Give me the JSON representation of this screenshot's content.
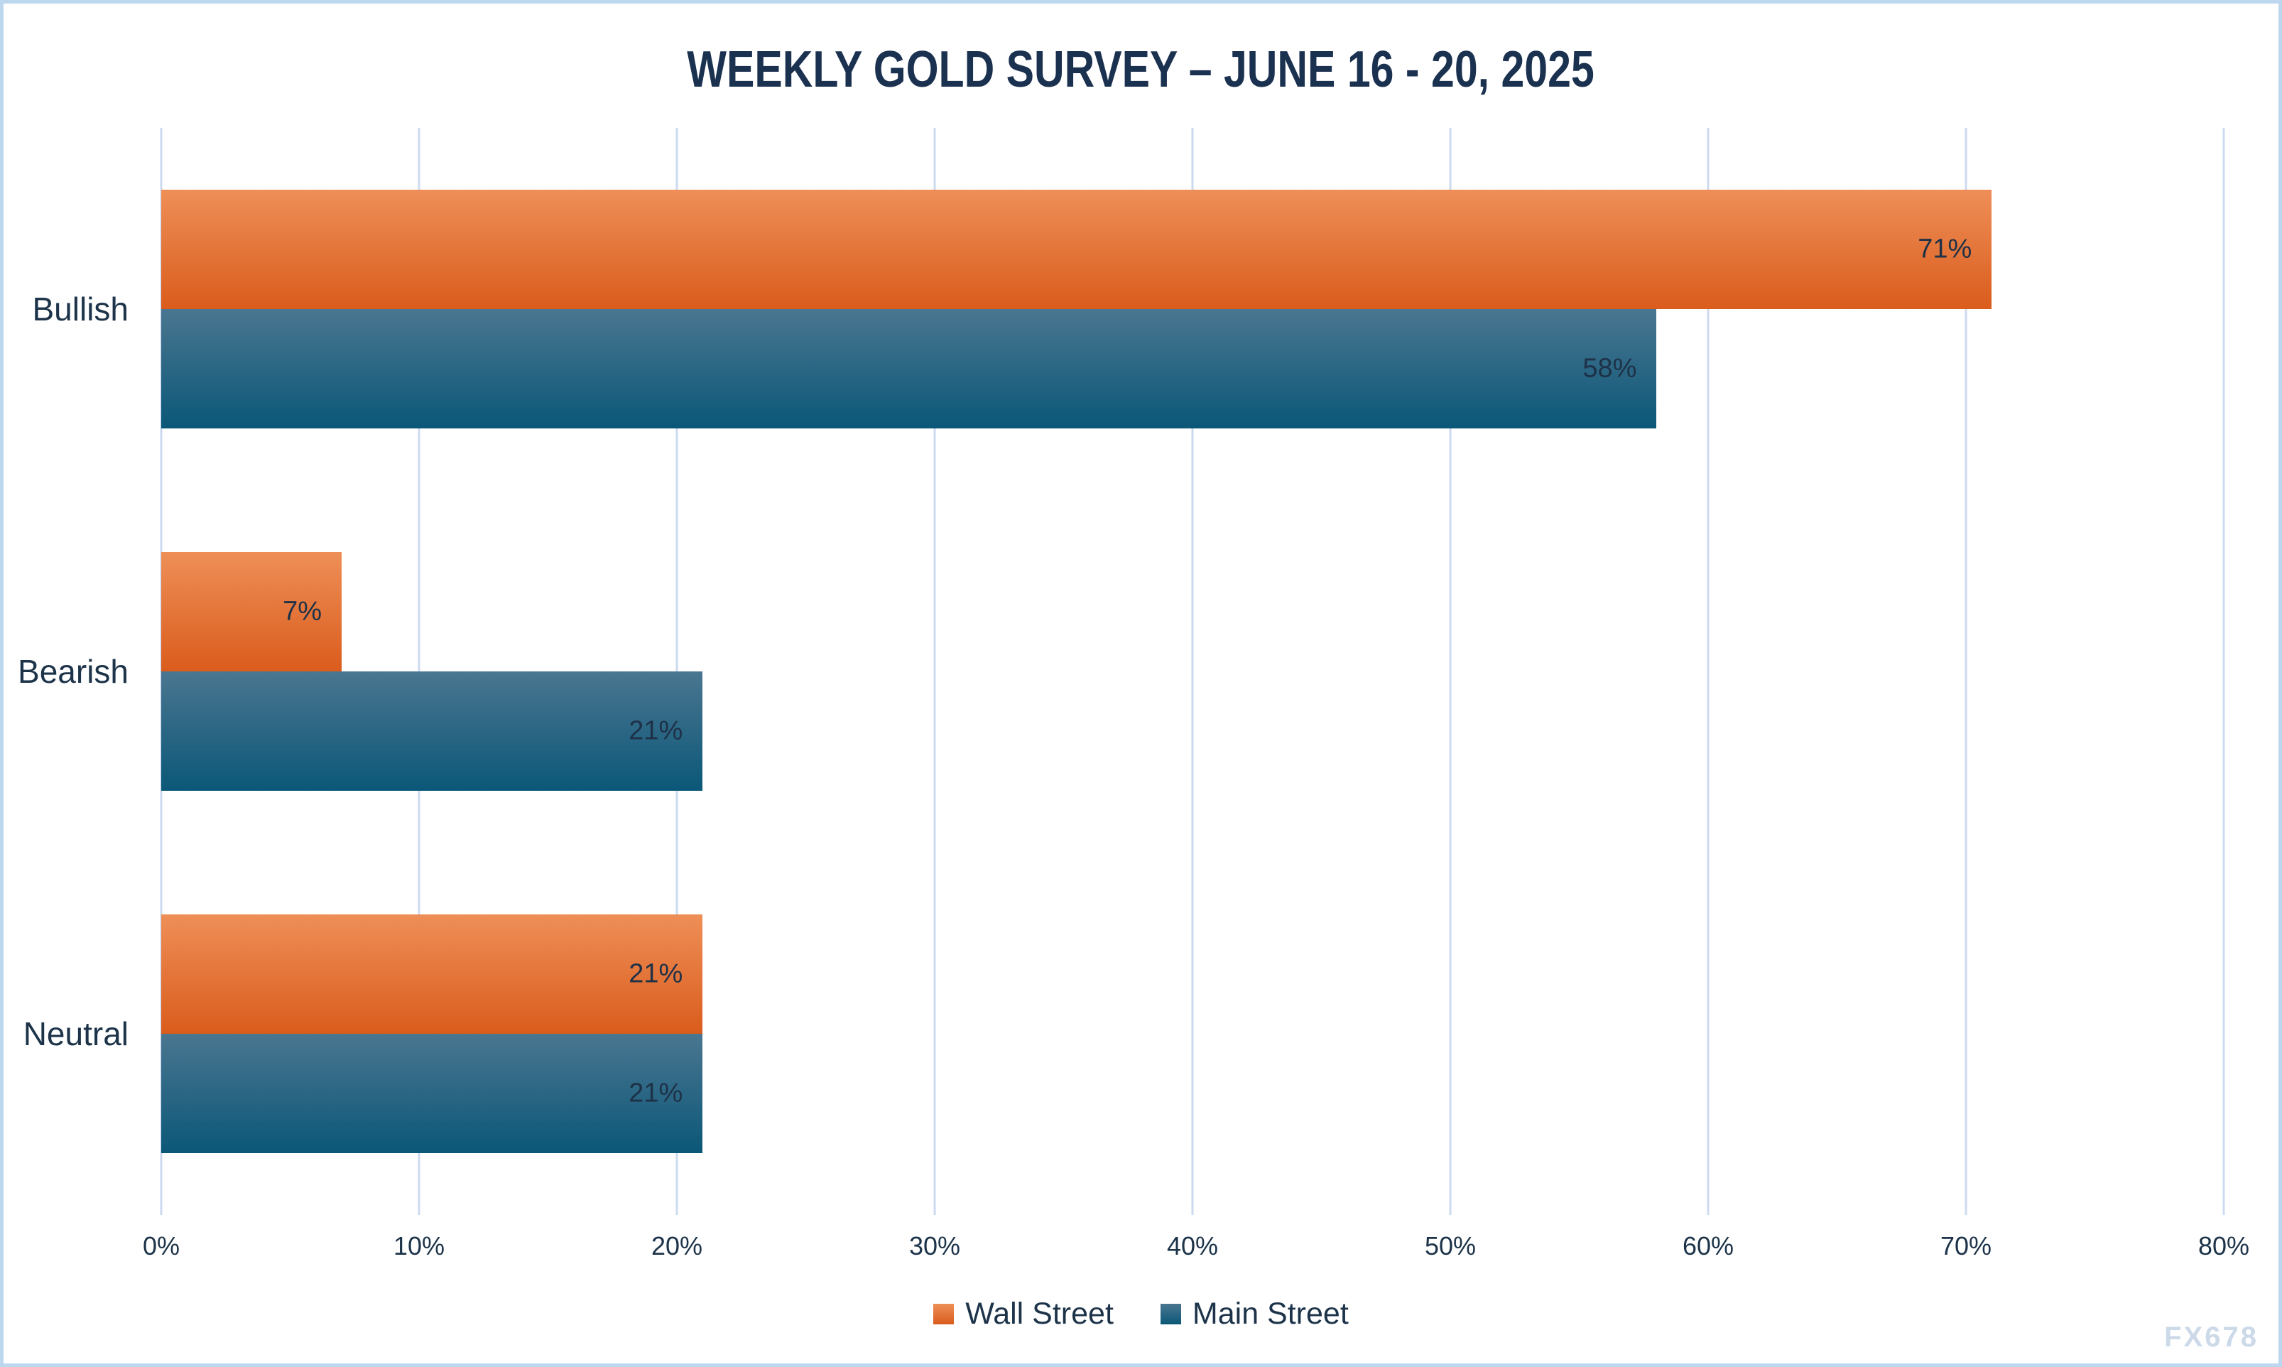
{
  "watermark": "FX678",
  "colors": {
    "frame_border": "#bdd7ee",
    "gridline": "#ccdaf0",
    "text_navy": "#1c3349",
    "watermark": "#ccd9e8"
  },
  "chart_data": {
    "type": "bar",
    "orientation": "horizontal",
    "title": "WEEKLY GOLD SURVEY – JUNE 16 - 20, 2025",
    "categories": [
      "Bullish",
      "Bearish",
      "Neutral"
    ],
    "series": [
      {
        "name": "Wall Street",
        "values": [
          71,
          7,
          21
        ],
        "color_top": "#ee8f58",
        "color_bottom": "#da5c1c"
      },
      {
        "name": "Main Street",
        "values": [
          58,
          21,
          21
        ],
        "color_top": "#4a7690",
        "color_bottom": "#0b5778"
      }
    ],
    "data_labels": [
      [
        "71%",
        "7%",
        "21%"
      ],
      [
        "58%",
        "21%",
        "21%"
      ]
    ],
    "x_ticks": [
      "0%",
      "10%",
      "20%",
      "30%",
      "40%",
      "50%",
      "60%",
      "70%",
      "80%"
    ],
    "xlim": [
      0,
      80
    ],
    "grid": "vertical",
    "legend_position": "bottom",
    "data_label_position": "inside-end"
  }
}
